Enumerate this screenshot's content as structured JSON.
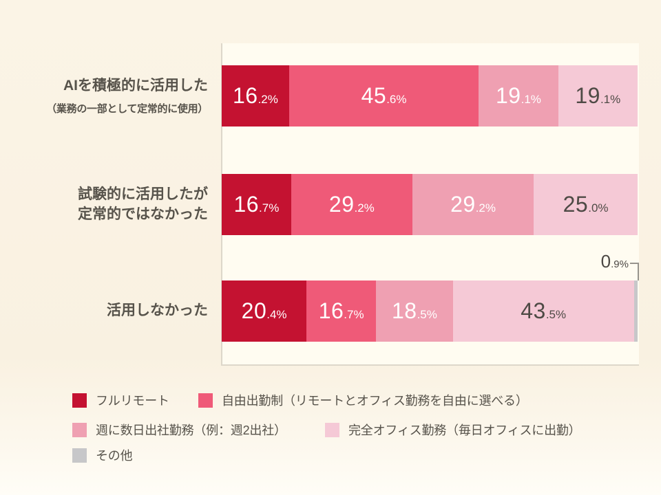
{
  "chart_data": {
    "type": "bar",
    "variant": "horizontal_stacked",
    "unit": "%",
    "xlim": [
      0,
      100
    ],
    "grid": false,
    "legend_position": "bottom",
    "categories": [
      {
        "label": "AIを積極的に活用した",
        "sublabel": "（業務の一部として定常的に使用）"
      },
      {
        "label": "試験的に活用したが\n定常的ではなかった",
        "sublabel": ""
      },
      {
        "label": "活用しなかった",
        "sublabel": ""
      }
    ],
    "series": [
      {
        "name": "フルリモート",
        "color": "#c41231",
        "text_color": "#ffffff",
        "values": [
          16.2,
          16.7,
          20.4
        ]
      },
      {
        "name": "自由出勤制（リモートとオフィス勤務を自由に選べる）",
        "color": "#ef5a78",
        "text_color": "#ffffff",
        "values": [
          45.6,
          29.2,
          16.7
        ]
      },
      {
        "name": "週に数日出社勤務（例：週2出社）",
        "color": "#efa0b2",
        "text_color": "#ffffff",
        "values": [
          19.1,
          29.2,
          18.5
        ]
      },
      {
        "name": "完全オフィス勤務（毎日オフィスに出勤）",
        "color": "#f5c9d6",
        "text_color": "#4e4a45",
        "values": [
          19.1,
          25.0,
          43.5
        ]
      },
      {
        "name": "その他",
        "color": "#c7c7c9",
        "text_color": "#4e4a45",
        "values": [
          null,
          null,
          0.9
        ],
        "label_outside": true
      }
    ],
    "callout": {
      "text_int": "0",
      "text_frac": ".9%",
      "category_index": 2,
      "series_index": 4
    }
  }
}
